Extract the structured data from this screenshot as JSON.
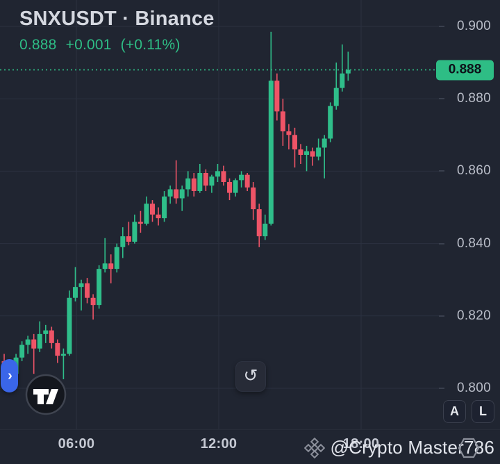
{
  "header": {
    "symbol_title": "SNXUSDT · Binance",
    "last_price": "0.888",
    "change": "+0.001",
    "change_pct": "(+0.11%)"
  },
  "colors": {
    "background": "#202531",
    "grid": "#2b3140",
    "up_green": "#2fbe8a",
    "down_red": "#ee5467",
    "accent_green": "#2ebd85",
    "badge_text": "#0d1119",
    "axis_text": "#b9bdc8",
    "time_text": "#c5c9d3",
    "title_text": "#d5d8e0",
    "toolbar_blue": "#3a66e8"
  },
  "price_axis": {
    "labels": [
      "0.900",
      "0.880",
      "0.860",
      "0.840",
      "0.820",
      "0.800"
    ],
    "current_price_label": "0.888"
  },
  "time_axis": {
    "labels": [
      {
        "text": "06:00",
        "x": 110
      },
      {
        "text": "12:00",
        "x": 315
      },
      {
        "text": "18:00",
        "x": 520
      }
    ]
  },
  "buttons": {
    "refresh_glyph": "↺",
    "a_label": "A",
    "l_label": "L",
    "toolbar_chevron": "›"
  },
  "watermark": {
    "full_text": "@Crypto Master786",
    "prefix": "@Crypto Master",
    "hex_digit": "7",
    "suffix": "86",
    "icon": "binance-logo"
  },
  "chart_data": {
    "type": "candlestick",
    "symbol": "SNXUSDT",
    "exchange": "Binance",
    "title": "SNXUSDT · Binance",
    "last_price": 0.888,
    "change": 0.001,
    "change_pct": 0.11,
    "y_ticks": [
      0.9,
      0.88,
      0.86,
      0.84,
      0.82,
      0.8
    ],
    "ylim": [
      0.789,
      0.907
    ],
    "x_tick_labels": [
      "06:00",
      "12:00",
      "18:00"
    ],
    "grid": true,
    "current_price_line": "dotted-green",
    "candles_ohlc": [
      [
        0.8075,
        0.8095,
        0.8035,
        0.805
      ],
      [
        0.805,
        0.807,
        0.802,
        0.804
      ],
      [
        0.804,
        0.8095,
        0.803,
        0.8085
      ],
      [
        0.8085,
        0.813,
        0.8075,
        0.812
      ],
      [
        0.812,
        0.8145,
        0.8095,
        0.8135
      ],
      [
        0.8135,
        0.815,
        0.804,
        0.811
      ],
      [
        0.811,
        0.8185,
        0.81,
        0.815
      ],
      [
        0.815,
        0.8175,
        0.8125,
        0.816
      ],
      [
        0.816,
        0.817,
        0.811,
        0.8125
      ],
      [
        0.8125,
        0.8135,
        0.807,
        0.809
      ],
      [
        0.809,
        0.811,
        0.8025,
        0.8095
      ],
      [
        0.8095,
        0.827,
        0.809,
        0.825
      ],
      [
        0.825,
        0.8335,
        0.824,
        0.828
      ],
      [
        0.828,
        0.83,
        0.8215,
        0.829
      ],
      [
        0.829,
        0.8305,
        0.8235,
        0.825
      ],
      [
        0.825,
        0.826,
        0.819,
        0.823
      ],
      [
        0.823,
        0.834,
        0.822,
        0.833
      ],
      [
        0.833,
        0.8415,
        0.832,
        0.8345
      ],
      [
        0.8345,
        0.837,
        0.829,
        0.833
      ],
      [
        0.833,
        0.84,
        0.832,
        0.839
      ],
      [
        0.839,
        0.8445,
        0.836,
        0.842
      ],
      [
        0.842,
        0.846,
        0.8395,
        0.8405
      ],
      [
        0.8405,
        0.848,
        0.84,
        0.846
      ],
      [
        0.846,
        0.849,
        0.843,
        0.8455
      ],
      [
        0.8455,
        0.853,
        0.845,
        0.851
      ],
      [
        0.851,
        0.852,
        0.846,
        0.848
      ],
      [
        0.848,
        0.85,
        0.845,
        0.847
      ],
      [
        0.847,
        0.8545,
        0.846,
        0.853
      ],
      [
        0.853,
        0.856,
        0.851,
        0.855
      ],
      [
        0.855,
        0.863,
        0.851,
        0.8525
      ],
      [
        0.8525,
        0.856,
        0.849,
        0.855
      ],
      [
        0.855,
        0.86,
        0.853,
        0.858
      ],
      [
        0.858,
        0.8595,
        0.853,
        0.8545
      ],
      [
        0.8545,
        0.862,
        0.854,
        0.8595
      ],
      [
        0.8595,
        0.8605,
        0.8545,
        0.856
      ],
      [
        0.856,
        0.859,
        0.854,
        0.8585
      ],
      [
        0.8585,
        0.862,
        0.857,
        0.86
      ],
      [
        0.86,
        0.8615,
        0.856,
        0.857
      ],
      [
        0.857,
        0.858,
        0.852,
        0.854
      ],
      [
        0.854,
        0.858,
        0.853,
        0.8575
      ],
      [
        0.8575,
        0.86,
        0.8555,
        0.859
      ],
      [
        0.859,
        0.8595,
        0.8545,
        0.8555
      ],
      [
        0.8555,
        0.857,
        0.8465,
        0.8495
      ],
      [
        0.8495,
        0.851,
        0.839,
        0.842
      ],
      [
        0.842,
        0.848,
        0.841,
        0.8455
      ],
      [
        0.8455,
        0.8985,
        0.845,
        0.885
      ],
      [
        0.885,
        0.887,
        0.874,
        0.8765
      ],
      [
        0.8765,
        0.88,
        0.867,
        0.871
      ],
      [
        0.871,
        0.873,
        0.866,
        0.87
      ],
      [
        0.87,
        0.872,
        0.861,
        0.866
      ],
      [
        0.866,
        0.8675,
        0.862,
        0.8645
      ],
      [
        0.8645,
        0.867,
        0.86,
        0.8655
      ],
      [
        0.8655,
        0.8665,
        0.8615,
        0.864
      ],
      [
        0.864,
        0.869,
        0.863,
        0.8665
      ],
      [
        0.8665,
        0.87,
        0.858,
        0.869
      ],
      [
        0.869,
        0.879,
        0.868,
        0.878
      ],
      [
        0.878,
        0.89,
        0.877,
        0.883
      ],
      [
        0.883,
        0.895,
        0.882,
        0.887
      ],
      [
        0.887,
        0.893,
        0.885,
        0.888
      ]
    ]
  }
}
